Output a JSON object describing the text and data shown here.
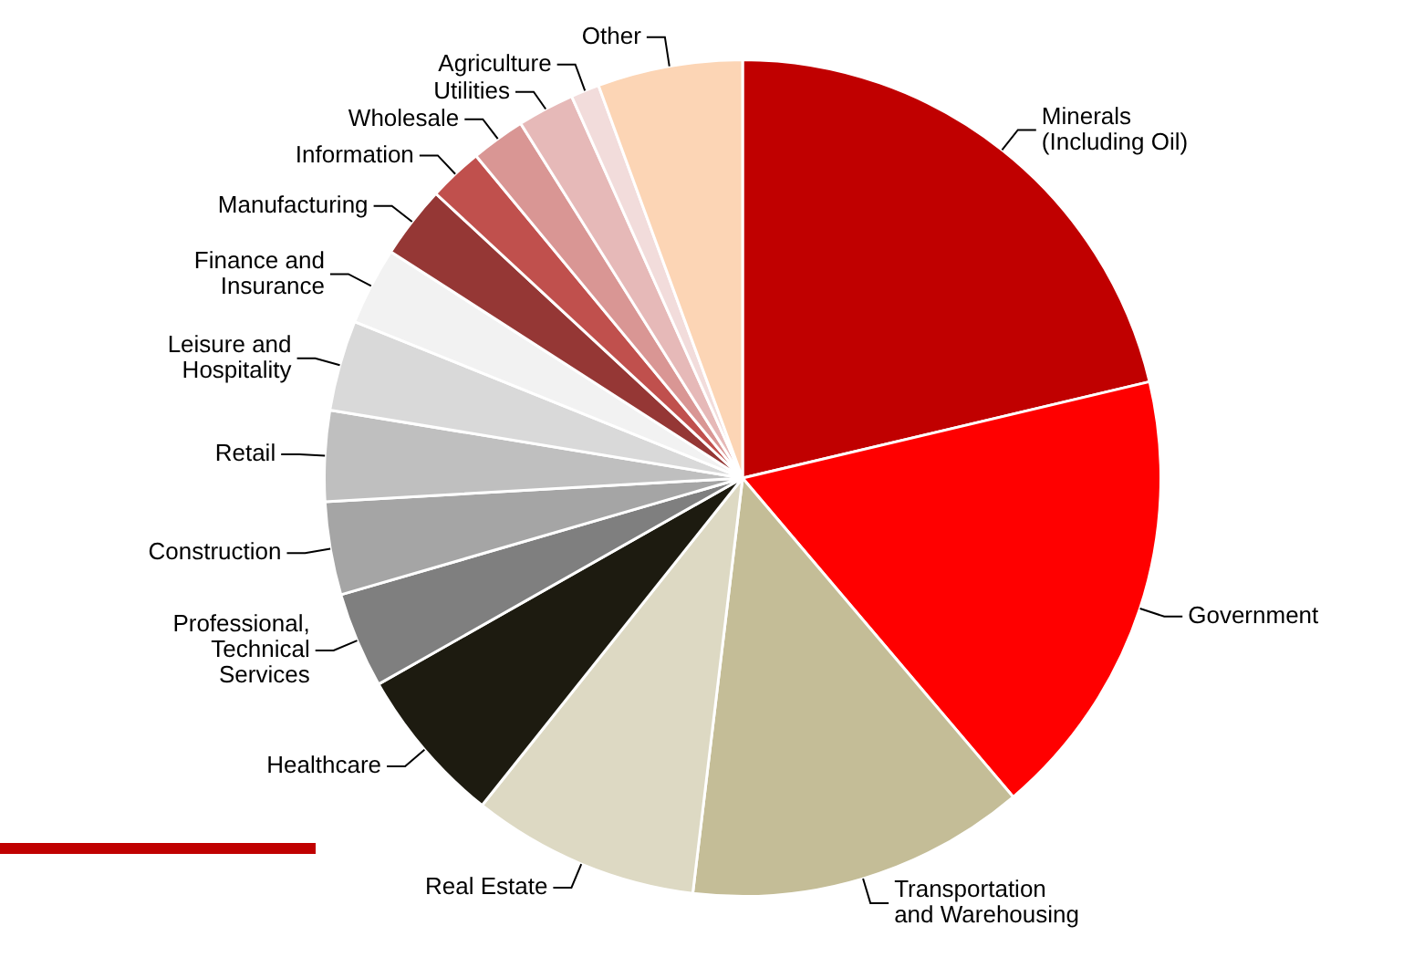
{
  "chart_data": {
    "type": "pie",
    "categories": [
      "Minerals (Including Oil)",
      "Government",
      "Transportation and Warehousing",
      "Real Estate",
      "Healthcare",
      "Professional, Technical Services",
      "Construction",
      "Retail",
      "Leisure and Hospitality",
      "Finance and Insurance",
      "Manufacturing",
      "Information",
      "Wholesale",
      "Utilities",
      "Agriculture",
      "Other"
    ],
    "values": [
      21.3,
      17.5,
      13.1,
      8.8,
      6.1,
      3.7,
      3.6,
      3.5,
      3.5,
      3.0,
      2.8,
      2.1,
      2.1,
      2.2,
      1.1,
      5.6
    ],
    "colors": [
      "#c00000",
      "#ff0000",
      "#c4bd97",
      "#ddd9c3",
      "#1d1b10",
      "#7f7f7f",
      "#a5a5a5",
      "#bfbfbf",
      "#d9d9d9",
      "#f2f2f2",
      "#953735",
      "#c0504d",
      "#d99694",
      "#e6b9b8",
      "#f2dcdb",
      "#fcd5b5"
    ],
    "legend": false
  }
}
